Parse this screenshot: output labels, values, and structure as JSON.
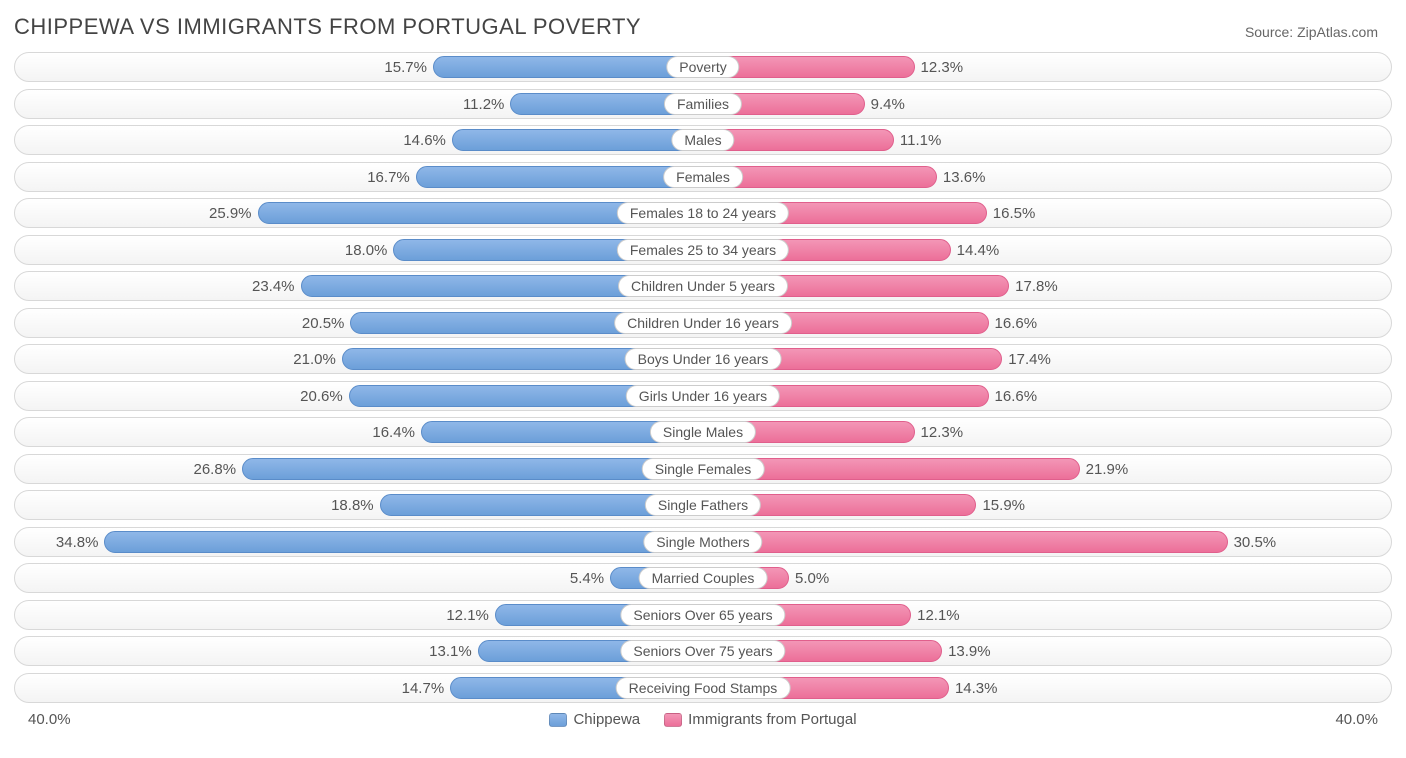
{
  "title": "CHIPPEWA VS IMMIGRANTS FROM PORTUGAL POVERTY",
  "source": "Source: ZipAtlas.com",
  "axis_max": 40.0,
  "axis_label_left": "40.0%",
  "axis_label_right": "40.0%",
  "legend": {
    "series_a": "Chippewa",
    "series_b": "Immigrants from Portugal"
  },
  "colors": {
    "series_a_fill_top": "#8fb7e8",
    "series_a_fill_bottom": "#6c9fd9",
    "series_a_border": "#5a8cc9",
    "series_b_fill_top": "#f396b6",
    "series_b_fill_bottom": "#ec6f99",
    "series_b_border": "#e05f8c",
    "row_border": "#d8d8d8",
    "text": "#555555",
    "title_text": "#444444",
    "background": "#ffffff"
  },
  "rows": [
    {
      "label": "Poverty",
      "a": 15.7,
      "b": 12.3
    },
    {
      "label": "Families",
      "a": 11.2,
      "b": 9.4
    },
    {
      "label": "Males",
      "a": 14.6,
      "b": 11.1
    },
    {
      "label": "Females",
      "a": 16.7,
      "b": 13.6
    },
    {
      "label": "Females 18 to 24 years",
      "a": 25.9,
      "b": 16.5
    },
    {
      "label": "Females 25 to 34 years",
      "a": 18.0,
      "b": 14.4
    },
    {
      "label": "Children Under 5 years",
      "a": 23.4,
      "b": 17.8
    },
    {
      "label": "Children Under 16 years",
      "a": 20.5,
      "b": 16.6
    },
    {
      "label": "Boys Under 16 years",
      "a": 21.0,
      "b": 17.4
    },
    {
      "label": "Girls Under 16 years",
      "a": 20.6,
      "b": 16.6
    },
    {
      "label": "Single Males",
      "a": 16.4,
      "b": 12.3
    },
    {
      "label": "Single Females",
      "a": 26.8,
      "b": 21.9
    },
    {
      "label": "Single Fathers",
      "a": 18.8,
      "b": 15.9
    },
    {
      "label": "Single Mothers",
      "a": 34.8,
      "b": 30.5
    },
    {
      "label": "Married Couples",
      "a": 5.4,
      "b": 5.0
    },
    {
      "label": "Seniors Over 65 years",
      "a": 12.1,
      "b": 12.1
    },
    {
      "label": "Seniors Over 75 years",
      "a": 13.1,
      "b": 13.9
    },
    {
      "label": "Receiving Food Stamps",
      "a": 14.7,
      "b": 14.3
    }
  ]
}
